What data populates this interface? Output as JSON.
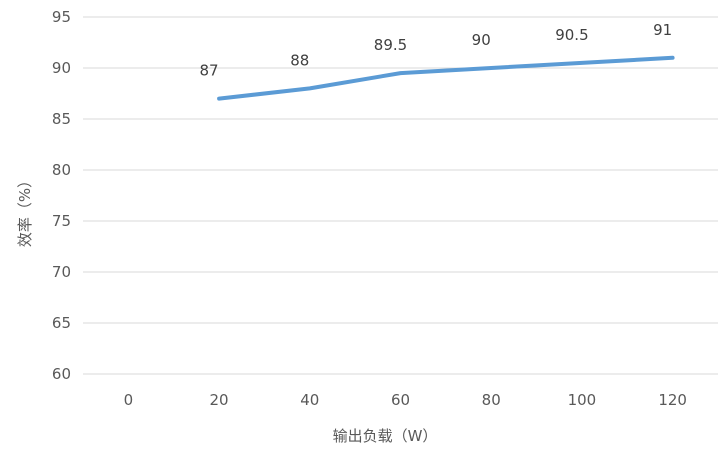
{
  "chart_data": {
    "type": "line",
    "xlabel": "输出负载（W）",
    "ylabel": "效率（%）",
    "categories": [
      "0",
      "20",
      "40",
      "60",
      "80",
      "100",
      "120"
    ],
    "y_ticks": [
      "60",
      "65",
      "70",
      "75",
      "80",
      "85",
      "90",
      "95"
    ],
    "ylim": [
      60,
      95
    ],
    "grid": true,
    "series": [
      {
        "values": [
          null,
          87,
          88,
          89.5,
          90,
          90.5,
          91
        ],
        "data_labels": [
          "",
          "87",
          "88",
          "89.5",
          "90",
          "90.5",
          "91"
        ],
        "color": "#5B9BD5"
      }
    ]
  }
}
